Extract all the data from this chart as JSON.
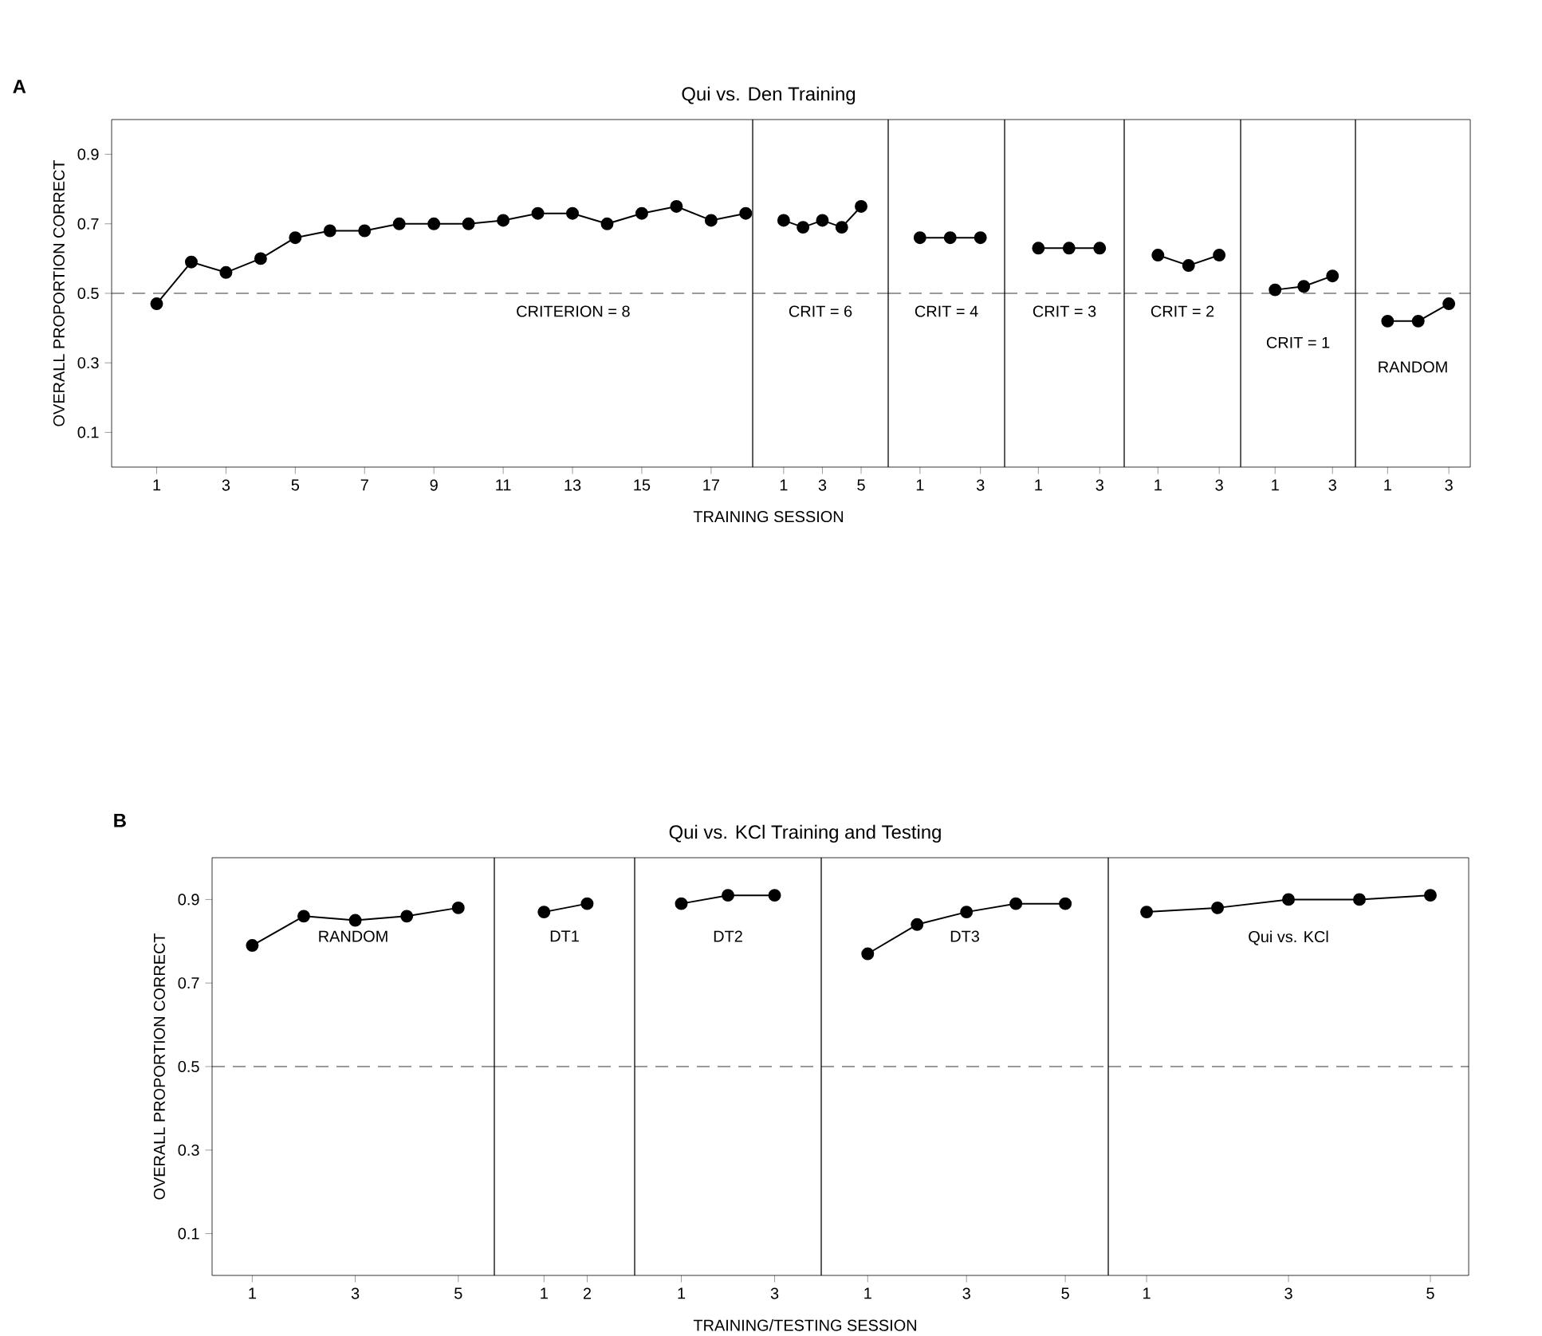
{
  "chart_data": [
    {
      "type": "line",
      "ylabel": "OVERALL PROPORTION CORRECT",
      "annotations": [
        "A",
        "CRITERION = 8"
      ],
      "marker": "circle",
      "x": [
        1,
        2,
        3,
        4,
        5,
        6,
        7,
        8,
        9,
        10,
        11,
        12,
        13,
        14,
        15,
        16,
        17,
        18
      ],
      "series": [
        {
          "color": "#000000",
          "values": [
            0.47,
            0.59,
            0.56,
            0.6,
            0.66,
            0.68,
            0.68,
            0.7,
            0.7,
            0.7,
            0.71,
            0.73,
            0.73,
            0.7,
            0.73,
            0.75,
            0.71,
            0.73
          ]
        }
      ],
      "xlim": [
        -0.3,
        18.2
      ],
      "xticks": [
        1,
        3,
        5,
        7,
        9,
        11,
        13,
        15,
        17
      ],
      "ylim": [
        0,
        1.0
      ],
      "yticks": [
        0.1,
        0.3,
        0.5,
        0.7,
        0.9
      ],
      "ref_lines": [
        {
          "axis": "y",
          "value": 0.5,
          "line_style": "dashed"
        }
      ]
    },
    {
      "type": "line",
      "title": "Qui vs. Den Training",
      "xlabel": "TRAINING SESSION",
      "annotations": [
        "CRIT = 6"
      ],
      "marker": "circle",
      "tick_labels": "x",
      "x": [
        1,
        2,
        3,
        4,
        5
      ],
      "series": [
        {
          "color": "#000000",
          "values": [
            0.71,
            0.69,
            0.71,
            0.69,
            0.75
          ]
        }
      ],
      "xlim": [
        -0.6,
        6.4
      ],
      "xticks": [
        1,
        3,
        5
      ],
      "ylim": [
        0,
        1.0
      ],
      "ref_lines": [
        {
          "axis": "y",
          "value": 0.5,
          "line_style": "dashed"
        }
      ]
    },
    {
      "type": "line",
      "annotations": [
        "CRIT = 4"
      ],
      "marker": "circle",
      "tick_labels": "x",
      "x": [
        1,
        2,
        3
      ],
      "series": [
        {
          "color": "#000000",
          "values": [
            0.66,
            0.66,
            0.66
          ]
        }
      ],
      "xlim": [
        -0.05,
        3.8
      ],
      "xticks": [
        1,
        3
      ],
      "ylim": [
        0,
        1.0
      ],
      "ref_lines": [
        {
          "axis": "y",
          "value": 0.5,
          "line_style": "dashed"
        }
      ]
    },
    {
      "type": "line",
      "annotations": [
        "CRIT = 3"
      ],
      "marker": "circle",
      "tick_labels": "x",
      "x": [
        1,
        2,
        3
      ],
      "series": [
        {
          "color": "#000000",
          "values": [
            0.63,
            0.63,
            0.63
          ]
        }
      ],
      "xlim": [
        -0.1,
        3.8
      ],
      "xticks": [
        1,
        3
      ],
      "ylim": [
        0,
        1.0
      ],
      "ref_lines": [
        {
          "axis": "y",
          "value": 0.5,
          "line_style": "dashed"
        }
      ]
    },
    {
      "type": "line",
      "annotations": [
        "CRIT = 2"
      ],
      "marker": "circle",
      "tick_labels": "x",
      "x": [
        1,
        2,
        3
      ],
      "series": [
        {
          "color": "#000000",
          "values": [
            0.61,
            0.58,
            0.61
          ]
        }
      ],
      "xlim": [
        -0.1,
        3.7
      ],
      "xticks": [
        1,
        3
      ],
      "ylim": [
        0,
        1.0
      ],
      "ref_lines": [
        {
          "axis": "y",
          "value": 0.5,
          "line_style": "dashed"
        }
      ]
    },
    {
      "type": "line",
      "annotations": [
        "CRIT = 1"
      ],
      "marker": "circle",
      "tick_labels": "x",
      "x": [
        1,
        2,
        3
      ],
      "series": [
        {
          "color": "#000000",
          "values": [
            0.51,
            0.52,
            0.55
          ]
        }
      ],
      "xlim": [
        -0.2,
        3.8
      ],
      "xticks": [
        1,
        3
      ],
      "ylim": [
        0,
        1.0
      ],
      "ref_lines": [
        {
          "axis": "y",
          "value": 0.5,
          "line_style": "dashed"
        }
      ]
    },
    {
      "type": "line",
      "annotations": [
        "RANDOM"
      ],
      "marker": "circle",
      "tick_labels": "x",
      "x": [
        1,
        2,
        3
      ],
      "series": [
        {
          "color": "#000000",
          "values": [
            0.42,
            0.42,
            0.47
          ]
        }
      ],
      "xlim": [
        -0.05,
        3.7
      ],
      "xticks": [
        1,
        3
      ],
      "ylim": [
        0,
        1.0
      ],
      "ref_lines": [
        {
          "axis": "y",
          "value": 0.5,
          "line_style": "dashed"
        }
      ]
    },
    {
      "type": "line",
      "ylabel": "OVERALL PROPORTION CORRECT",
      "annotations": [
        "B",
        "RANDOM"
      ],
      "marker": "circle",
      "x": [
        1,
        2,
        3,
        4,
        5
      ],
      "series": [
        {
          "color": "#000000",
          "values": [
            0.79,
            0.86,
            0.85,
            0.86,
            0.88
          ]
        }
      ],
      "xlim": [
        0.22,
        5.7
      ],
      "xticks": [
        1,
        3,
        5
      ],
      "ylim": [
        0,
        1.0
      ],
      "yticks": [
        0.1,
        0.3,
        0.5,
        0.7,
        0.9
      ],
      "ref_lines": [
        {
          "axis": "y",
          "value": 0.5,
          "line_style": "dashed"
        }
      ]
    },
    {
      "type": "line",
      "annotations": [
        "DT1"
      ],
      "marker": "circle",
      "tick_labels": "x",
      "x": [
        1,
        2
      ],
      "series": [
        {
          "color": "#000000",
          "values": [
            0.87,
            0.89
          ]
        }
      ],
      "xlim": [
        -0.15,
        3.1
      ],
      "xticks": [
        1,
        2
      ],
      "ylim": [
        0,
        1.0
      ],
      "ref_lines": [
        {
          "axis": "y",
          "value": 0.5,
          "line_style": "dashed"
        }
      ]
    },
    {
      "type": "line",
      "title": "Qui vs. KCl Training and Testing",
      "xlabel": "TRAINING/TESTING SESSION",
      "annotations": [
        "DT2"
      ],
      "marker": "circle",
      "tick_labels": "x",
      "x": [
        1,
        2,
        3
      ],
      "series": [
        {
          "color": "#000000",
          "values": [
            0.89,
            0.91,
            0.91
          ]
        }
      ],
      "xlim": [
        0,
        4.0
      ],
      "xticks": [
        1,
        3
      ],
      "ylim": [
        0,
        1.0
      ],
      "ref_lines": [
        {
          "axis": "y",
          "value": 0.5,
          "line_style": "dashed"
        }
      ]
    },
    {
      "type": "line",
      "annotations": [
        "DT3"
      ],
      "marker": "circle",
      "tick_labels": "x",
      "x": [
        1,
        2,
        3,
        4,
        5
      ],
      "series": [
        {
          "color": "#000000",
          "values": [
            0.77,
            0.84,
            0.87,
            0.89,
            0.89
          ]
        }
      ],
      "xlim": [
        0.06,
        5.87
      ],
      "xticks": [
        1,
        3,
        5
      ],
      "ylim": [
        0,
        1.0
      ],
      "ref_lines": [
        {
          "axis": "y",
          "value": 0.5,
          "line_style": "dashed"
        }
      ]
    },
    {
      "type": "line",
      "annotations": [
        "Qui vs. KCl"
      ],
      "marker": "circle",
      "tick_labels": "x",
      "x": [
        1,
        2,
        3,
        4,
        5
      ],
      "series": [
        {
          "color": "#000000",
          "values": [
            0.87,
            0.88,
            0.9,
            0.9,
            0.91
          ]
        }
      ],
      "xlim": [
        0.46,
        5.54
      ],
      "xticks": [
        1,
        3,
        5
      ],
      "ylim": [
        0,
        1.0
      ],
      "ref_lines": [
        {
          "axis": "y",
          "value": 0.5,
          "line_style": "dashed"
        }
      ]
    }
  ]
}
